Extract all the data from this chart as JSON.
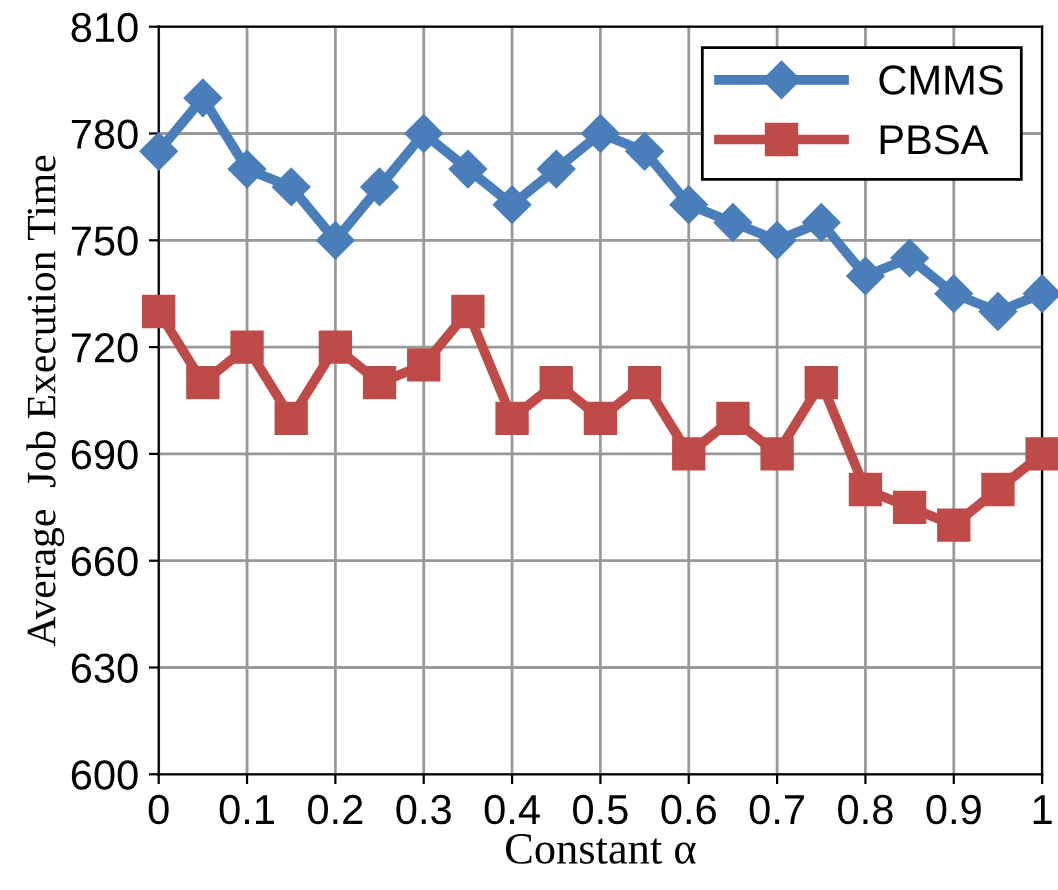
{
  "chart_data": {
    "type": "line",
    "xlabel": "Constant α",
    "ylabel": "Average  Job Execution Time",
    "x": [
      0,
      0.05,
      0.1,
      0.15,
      0.2,
      0.25,
      0.3,
      0.35,
      0.4,
      0.45,
      0.5,
      0.55,
      0.6,
      0.65,
      0.7,
      0.75,
      0.8,
      0.85,
      0.9,
      0.95,
      1
    ],
    "series": [
      {
        "name": "CMMS",
        "color": "#4a7ebb",
        "marker": "diamond",
        "values": [
          775,
          790,
          770,
          765,
          750,
          765,
          780,
          770,
          760,
          770,
          780,
          775,
          760,
          755,
          750,
          755,
          740,
          745,
          735,
          730,
          735
        ]
      },
      {
        "name": "PBSA",
        "color": "#be4b48",
        "marker": "square",
        "values": [
          730,
          710,
          720,
          700,
          720,
          710,
          715,
          730,
          700,
          710,
          700,
          710,
          690,
          700,
          690,
          710,
          680,
          675,
          670,
          680,
          690
        ]
      }
    ],
    "xlim": [
      0,
      1
    ],
    "xticks": [
      0,
      0.1,
      0.2,
      0.3,
      0.4,
      0.5,
      0.6,
      0.7,
      0.8,
      0.9,
      1
    ],
    "ylim": [
      600,
      810
    ],
    "yticks": [
      600,
      630,
      660,
      690,
      720,
      750,
      780,
      810
    ],
    "grid": true,
    "legend": "top right",
    "line_style": "solid"
  }
}
